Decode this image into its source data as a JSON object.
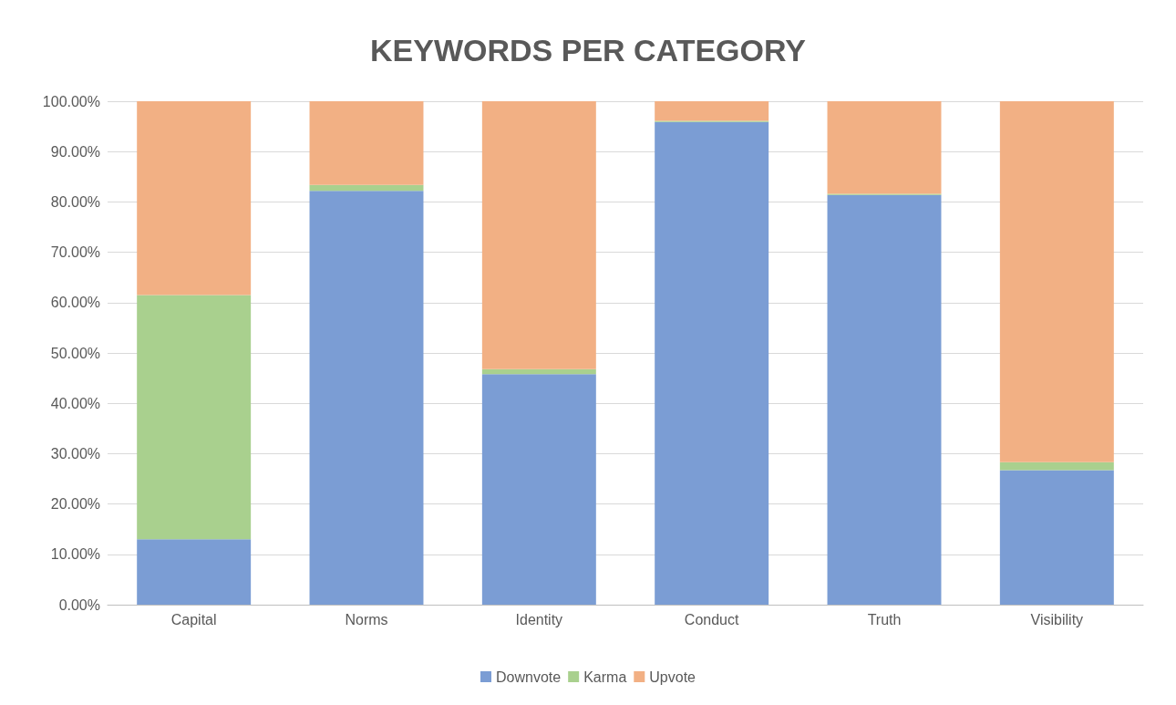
{
  "chart_data": {
    "type": "bar",
    "title": "KEYWORDS PER CATEGORY",
    "stacked": true,
    "categories": [
      "Capital",
      "Norms",
      "Identity",
      "Conduct",
      "Truth",
      "Visibility"
    ],
    "series": [
      {
        "name": "Downvote",
        "color": "#7b9dd4",
        "values": [
          13.0,
          82.2,
          45.8,
          95.9,
          81.4,
          26.7
        ]
      },
      {
        "name": "Karma",
        "color": "#a9d08e",
        "values": [
          48.5,
          1.2,
          1.0,
          0.2,
          0.2,
          1.6
        ]
      },
      {
        "name": "Upvote",
        "color": "#f2b084",
        "values": [
          38.5,
          16.6,
          53.2,
          3.9,
          18.4,
          71.7
        ]
      }
    ],
    "ylim": [
      0,
      100
    ],
    "yticks": [
      {
        "value": 0,
        "label": "0.00%"
      },
      {
        "value": 10,
        "label": "10.00%"
      },
      {
        "value": 20,
        "label": "20.00%"
      },
      {
        "value": 30,
        "label": "30.00%"
      },
      {
        "value": 40,
        "label": "40.00%"
      },
      {
        "value": 50,
        "label": "50.00%"
      },
      {
        "value": 60,
        "label": "60.00%"
      },
      {
        "value": 70,
        "label": "70.00%"
      },
      {
        "value": 80,
        "label": "80.00%"
      },
      {
        "value": 90,
        "label": "90.00%"
      },
      {
        "value": 100,
        "label": "100.00%"
      }
    ],
    "grid": "y",
    "legend": "bottom"
  }
}
